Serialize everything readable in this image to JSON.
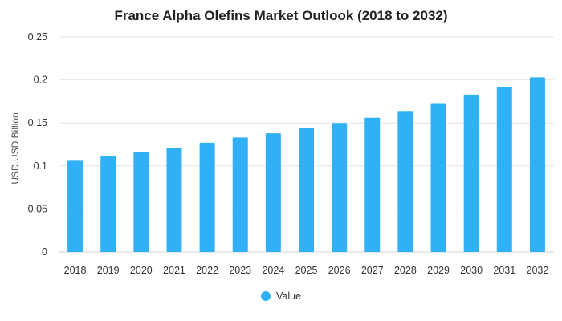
{
  "colors": {
    "bar": "#2FB0F7",
    "grid": "#e6e6e6",
    "axis": "#d0d0d0"
  },
  "chart_data": {
    "type": "bar",
    "title": "France Alpha Olefins Market Outlook (2018 to 2032)",
    "xlabel": "",
    "ylabel": "USD USD Billion",
    "ylim": [
      0,
      0.25
    ],
    "yticks": [
      "0",
      "0.05",
      "0.1",
      "0.15",
      "0.2",
      "0.25"
    ],
    "grid": true,
    "legend": "bottom",
    "categories": [
      "2018",
      "2019",
      "2020",
      "2021",
      "2022",
      "2023",
      "2024",
      "2025",
      "2026",
      "2027",
      "2028",
      "2029",
      "2030",
      "2031",
      "2032"
    ],
    "series": [
      {
        "name": "Value",
        "values": [
          0.106,
          0.111,
          0.116,
          0.121,
          0.127,
          0.133,
          0.138,
          0.144,
          0.15,
          0.156,
          0.164,
          0.173,
          0.183,
          0.192,
          0.203
        ]
      }
    ]
  }
}
